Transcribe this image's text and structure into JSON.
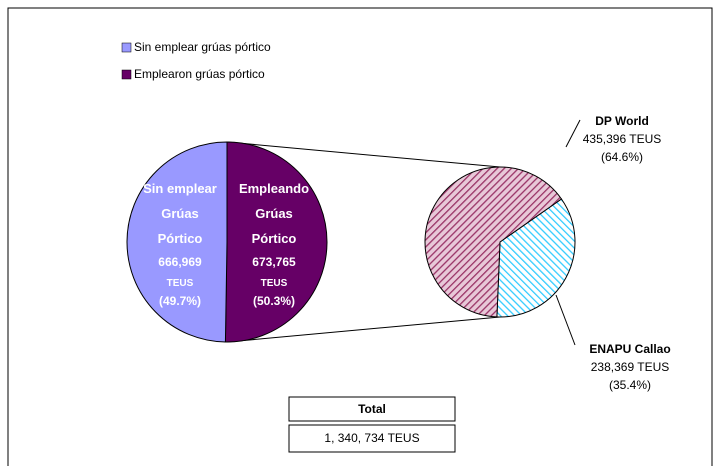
{
  "chart_data": {
    "type": "pie_of_pie",
    "pie": {
      "categories": [
        "Sin emplear grúas pórtico",
        "Emplearon grúas pórtico"
      ],
      "colors": [
        "#9999ff",
        "#660066"
      ],
      "slice_labels": [
        [
          "Sin emplear",
          "Grúas",
          "Pórtico"
        ],
        [
          "Empleando",
          "Grúas",
          "Pórtico"
        ]
      ],
      "values": [
        666969,
        673765
      ],
      "value_labels": [
        "666,969",
        "673,765"
      ],
      "percents": [
        49.7,
        50.3
      ],
      "percent_labels": [
        "(49.7%)",
        "(50.3%)"
      ],
      "unit": "TEUS"
    },
    "sub_pie": {
      "categories": [
        "DP World",
        "ENAPU Callao"
      ],
      "colors": [
        "#993366",
        "#33ccff"
      ],
      "values": [
        435396,
        238369
      ],
      "value_labels": [
        "435,396",
        "238,369"
      ],
      "percents": [
        64.6,
        35.4
      ],
      "percent_labels": [
        "(64.6%)",
        "(35.4%)"
      ],
      "unit": "TEUS"
    },
    "total": {
      "title": "Total",
      "value": 1340734,
      "value_label": "1, 340, 734",
      "unit": "TEUS"
    },
    "legend": "top-left"
  }
}
